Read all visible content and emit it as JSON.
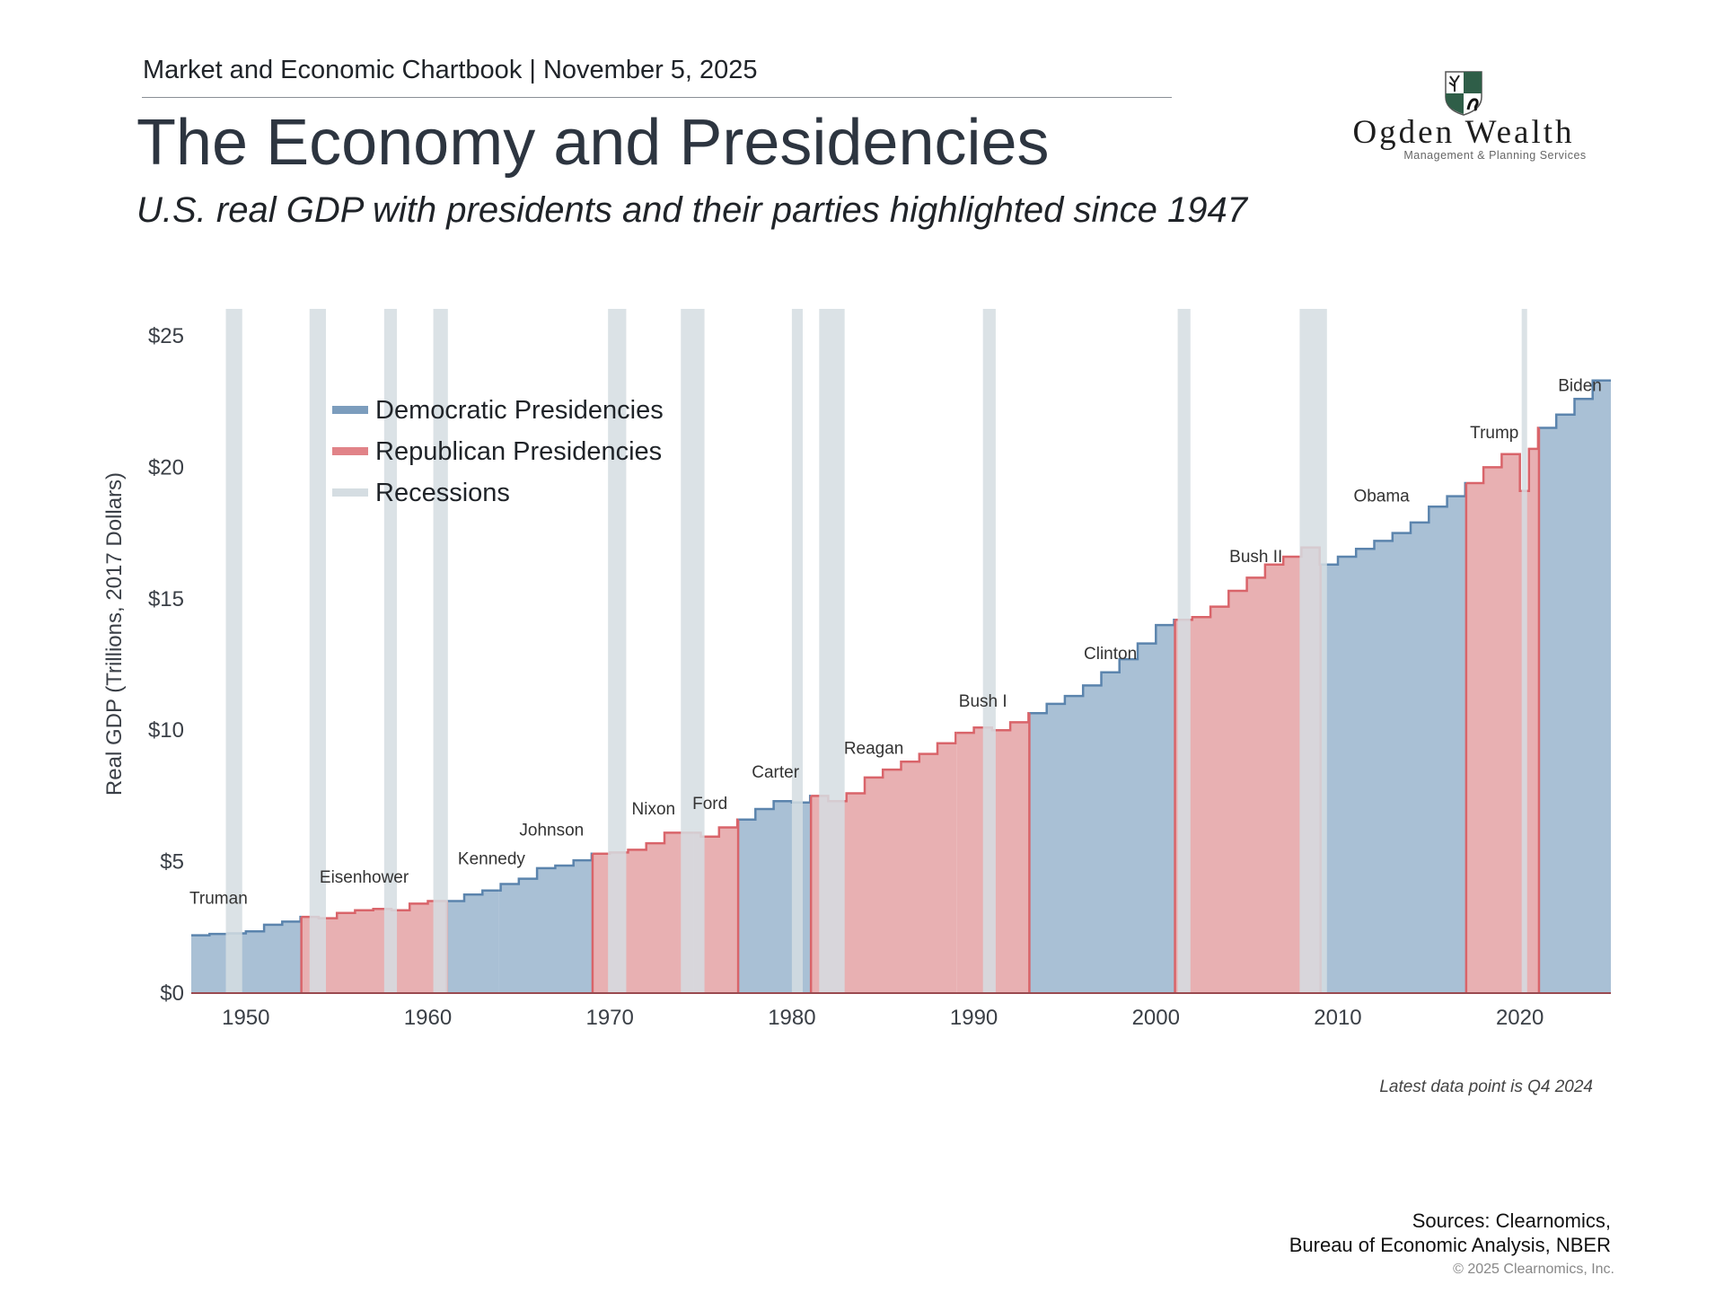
{
  "header": {
    "chartbook": "Market and Economic Chartbook | November 5, 2025",
    "title": "The Economy and Presidencies",
    "subtitle": "U.S. real GDP with presidents and their parties highlighted since 1947"
  },
  "logo": {
    "name": "Ogden Wealth",
    "tagline": "Management & Planning Services",
    "colors": {
      "shield": "#2f5e48"
    }
  },
  "footer": {
    "note": "Latest data point is Q4 2024",
    "sources_line1": "Sources: Clearnomics,",
    "sources_line2": "Bureau of Economic Analysis, NBER",
    "copyright": "© 2025 Clearnomics, Inc."
  },
  "chart_data": {
    "type": "area",
    "ylabel": "Real GDP (Trillions, 2017 Dollars)",
    "xlim": [
      1947,
      2025
    ],
    "ylim": [
      0,
      26
    ],
    "x_ticks": [
      1950,
      1960,
      1970,
      1980,
      1990,
      2000,
      2010,
      2020
    ],
    "y_ticks": [
      0,
      5,
      10,
      15,
      20,
      25
    ],
    "y_tick_labels": [
      "$0",
      "$5",
      "$10",
      "$15",
      "$20",
      "$25"
    ],
    "grid": false,
    "legend_placement": "top-left",
    "legend": [
      {
        "label": "Democratic Presidencies",
        "color": "#5b84ad"
      },
      {
        "label": "Republican Presidencies",
        "color": "#d9646a"
      },
      {
        "label": "Recessions",
        "color": "#d5dde2"
      }
    ],
    "colors": {
      "dem_fill": "#a9c0d5",
      "dem_line": "#5b84ad",
      "rep_fill": "#e8b0b2",
      "rep_line": "#d9646a",
      "recession": "#d5dde2"
    },
    "gdp": {
      "x": [
        1947,
        1948,
        1949,
        1950,
        1951,
        1952,
        1953,
        1954,
        1955,
        1956,
        1957,
        1958,
        1959,
        1960,
        1961,
        1962,
        1963,
        1964,
        1965,
        1966,
        1967,
        1968,
        1969,
        1970,
        1971,
        1972,
        1973,
        1974,
        1975,
        1976,
        1977,
        1978,
        1979,
        1980,
        1981,
        1982,
        1983,
        1984,
        1985,
        1986,
        1987,
        1988,
        1989,
        1990,
        1991,
        1992,
        1993,
        1994,
        1995,
        1996,
        1997,
        1998,
        1999,
        2000,
        2001,
        2002,
        2003,
        2004,
        2005,
        2006,
        2007,
        2008,
        2009,
        2010,
        2011,
        2012,
        2013,
        2014,
        2015,
        2016,
        2017,
        2018,
        2019,
        2020,
        2020.5,
        2021,
        2022,
        2023,
        2024
      ],
      "y": [
        2.2,
        2.25,
        2.27,
        2.35,
        2.6,
        2.72,
        2.9,
        2.85,
        3.05,
        3.15,
        3.2,
        3.15,
        3.4,
        3.5,
        3.5,
        3.75,
        3.9,
        4.15,
        4.35,
        4.75,
        4.85,
        5.05,
        5.3,
        5.35,
        5.45,
        5.7,
        6.1,
        6.1,
        5.95,
        6.3,
        6.6,
        7.0,
        7.3,
        7.25,
        7.5,
        7.3,
        7.6,
        8.2,
        8.5,
        8.8,
        9.1,
        9.5,
        9.9,
        10.1,
        10.0,
        10.3,
        10.65,
        11.0,
        11.3,
        11.7,
        12.2,
        12.7,
        13.3,
        14.0,
        14.2,
        14.3,
        14.7,
        15.3,
        15.8,
        16.3,
        16.6,
        16.95,
        16.3,
        16.6,
        16.9,
        17.2,
        17.5,
        17.9,
        18.5,
        18.9,
        19.4,
        20.0,
        20.5,
        19.1,
        20.7,
        21.5,
        22.0,
        22.6,
        23.3
      ]
    },
    "presidencies": [
      {
        "name": "Truman",
        "party": "D",
        "start": 1947,
        "end": 1953.05,
        "label_x": 1948.5,
        "label_y": 3.4
      },
      {
        "name": "Eisenhower",
        "party": "R",
        "start": 1953.05,
        "end": 1961.05,
        "label_x": 1956.5,
        "label_y": 4.2
      },
      {
        "name": "Kennedy",
        "party": "D",
        "start": 1961.05,
        "end": 1963.9,
        "label_x": 1963.5,
        "label_y": 4.9
      },
      {
        "name": "Johnson",
        "party": "D",
        "start": 1963.9,
        "end": 1969.05,
        "label_x": 1966.8,
        "label_y": 6.0
      },
      {
        "name": "Nixon",
        "party": "R",
        "start": 1969.05,
        "end": 1974.6,
        "label_x": 1972.4,
        "label_y": 6.8
      },
      {
        "name": "Ford",
        "party": "R",
        "start": 1974.6,
        "end": 1977.05,
        "label_x": 1975.5,
        "label_y": 7.0
      },
      {
        "name": "Carter",
        "party": "D",
        "start": 1977.05,
        "end": 1981.05,
        "label_x": 1979.1,
        "label_y": 8.2
      },
      {
        "name": "Reagan",
        "party": "R",
        "start": 1981.05,
        "end": 1989.05,
        "label_x": 1984.5,
        "label_y": 9.1
      },
      {
        "name": "Bush I",
        "party": "R",
        "start": 1989.05,
        "end": 1993.05,
        "label_x": 1990.5,
        "label_y": 10.9
      },
      {
        "name": "Clinton",
        "party": "D",
        "start": 1993.05,
        "end": 2001.05,
        "label_x": 1997.5,
        "label_y": 12.7
      },
      {
        "name": "Bush II",
        "party": "R",
        "start": 2001.05,
        "end": 2009.05,
        "label_x": 2005.5,
        "label_y": 16.4
      },
      {
        "name": "Obama",
        "party": "D",
        "start": 2009.05,
        "end": 2017.05,
        "label_x": 2012.4,
        "label_y": 18.7
      },
      {
        "name": "Trump",
        "party": "R",
        "start": 2017.05,
        "end": 2021.05,
        "label_x": 2018.6,
        "label_y": 21.1
      },
      {
        "name": "Biden",
        "party": "D",
        "start": 2021.05,
        "end": 2025,
        "label_x": 2023.3,
        "label_y": 22.9
      }
    ],
    "recessions": [
      [
        1948.9,
        1949.8
      ],
      [
        1953.5,
        1954.4
      ],
      [
        1957.6,
        1958.3
      ],
      [
        1960.3,
        1961.1
      ],
      [
        1969.9,
        1970.9
      ],
      [
        1973.9,
        1975.2
      ],
      [
        1980.0,
        1980.6
      ],
      [
        1981.5,
        1982.9
      ],
      [
        1990.5,
        1991.2
      ],
      [
        2001.2,
        2001.9
      ],
      [
        2007.9,
        2009.4
      ],
      [
        2020.1,
        2020.4
      ]
    ]
  }
}
